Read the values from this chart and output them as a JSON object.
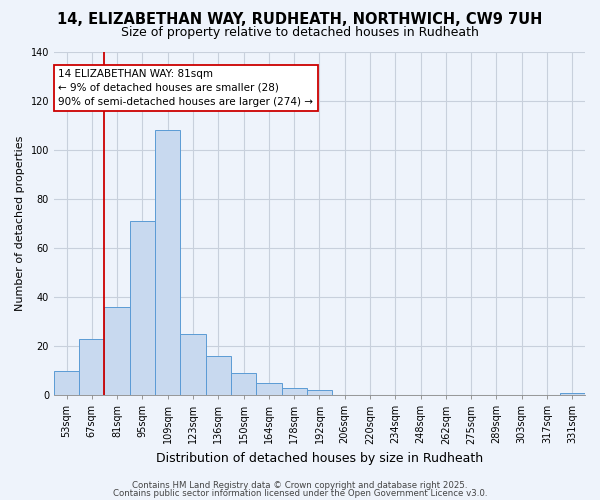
{
  "title": "14, ELIZABETHAN WAY, RUDHEATH, NORTHWICH, CW9 7UH",
  "subtitle": "Size of property relative to detached houses in Rudheath",
  "xlabel": "Distribution of detached houses by size in Rudheath",
  "ylabel": "Number of detached properties",
  "bin_labels": [
    "53sqm",
    "67sqm",
    "81sqm",
    "95sqm",
    "109sqm",
    "123sqm",
    "136sqm",
    "150sqm",
    "164sqm",
    "178sqm",
    "192sqm",
    "206sqm",
    "220sqm",
    "234sqm",
    "248sqm",
    "262sqm",
    "275sqm",
    "289sqm",
    "303sqm",
    "317sqm",
    "331sqm"
  ],
  "bar_values": [
    10,
    23,
    36,
    71,
    108,
    25,
    16,
    9,
    5,
    3,
    2,
    0,
    0,
    0,
    0,
    0,
    0,
    0,
    0,
    0,
    1
  ],
  "bar_color": "#c8d9ef",
  "bar_edge_color": "#5b9bd5",
  "vline_x_index": 2,
  "vline_color": "#cc0000",
  "annotation_line1": "14 ELIZABETHAN WAY: 81sqm",
  "annotation_line2": "← 9% of detached houses are smaller (28)",
  "annotation_line3": "90% of semi-detached houses are larger (274) →",
  "annotation_box_color": "white",
  "annotation_box_edge_color": "#cc0000",
  "ylim": [
    0,
    140
  ],
  "yticks": [
    0,
    20,
    40,
    60,
    80,
    100,
    120,
    140
  ],
  "footer1": "Contains HM Land Registry data © Crown copyright and database right 2025.",
  "footer2": "Contains public sector information licensed under the Open Government Licence v3.0.",
  "bg_color": "#eef3fb",
  "grid_color": "#c8d0dc",
  "title_fontsize": 10.5,
  "subtitle_fontsize": 9,
  "ylabel_fontsize": 8,
  "xlabel_fontsize": 9,
  "tick_fontsize": 7,
  "annotation_fontsize": 7.5,
  "footer_fontsize": 6.2
}
